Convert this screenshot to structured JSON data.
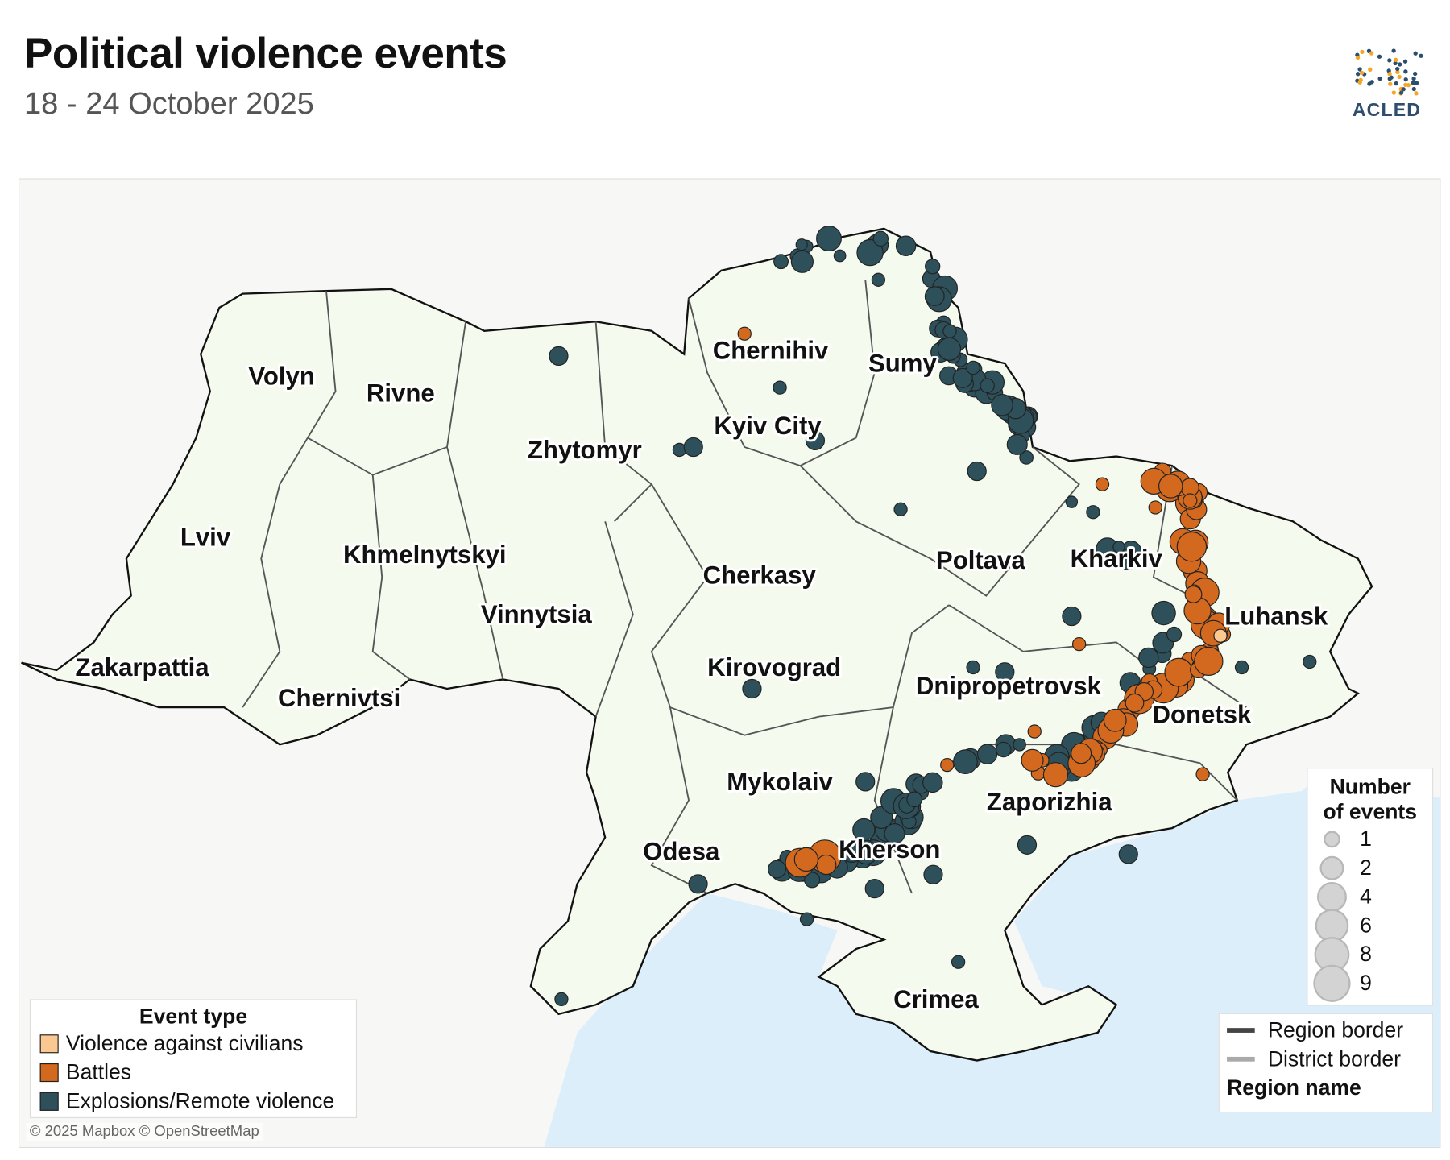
{
  "header": {
    "title": "Political violence events",
    "subtitle": "18 - 24 October 2025",
    "logo_text": "ACLED"
  },
  "colors": {
    "violence_against_civilians": "#fcc891",
    "battles": "#d2691e",
    "explosions": "#2e505b",
    "sea": "#ddeefb",
    "land": "#f5faee",
    "outside_land": "#f7f8f6"
  },
  "regions": [
    "Volyn",
    "Rivne",
    "Zhytomyr",
    "Chernihiv",
    "Sumy",
    "Kyiv City",
    "Lviv",
    "Khmelnytskyi",
    "Cherkasy",
    "Poltava",
    "Kharkiv",
    "Luhansk",
    "Vinnytsia",
    "Zakarpattia",
    "Chernivtsi",
    "Kirovograd",
    "Dnipropetrovsk",
    "Donetsk",
    "Mykolaiv",
    "Zaporizhia",
    "Odesa",
    "Kherson",
    "Crimea"
  ],
  "legend_event": {
    "title": "Event type",
    "items": [
      {
        "label": "Violence against civilians",
        "color": "#fcc891"
      },
      {
        "label": "Battles",
        "color": "#d2691e"
      },
      {
        "label": "Explosions/Remote violence",
        "color": "#2e505b"
      }
    ]
  },
  "legend_size": {
    "title_line1": "Number",
    "title_line2": "of events",
    "items": [
      "1",
      "2",
      "4",
      "6",
      "8",
      "9"
    ]
  },
  "legend_border": {
    "region_border": "Region border",
    "district_border": "District border",
    "region_name": "Region name"
  },
  "attribution": "© 2025 Mapbox © OpenStreetMap"
}
